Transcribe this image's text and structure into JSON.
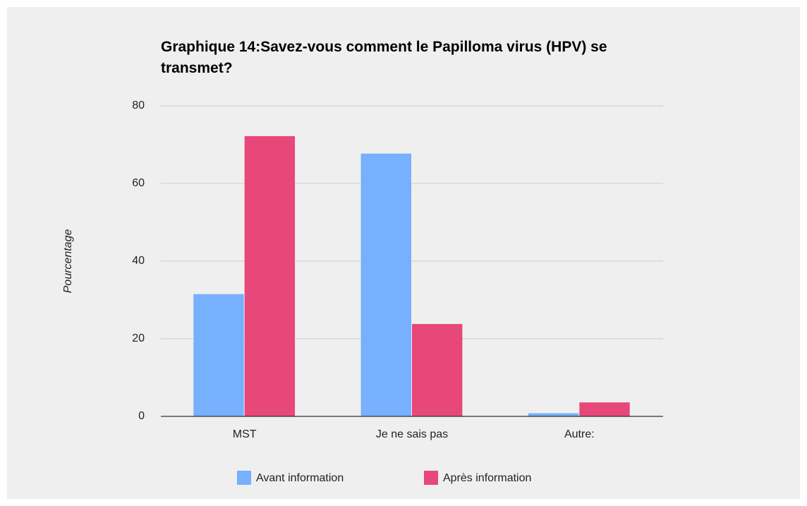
{
  "chart_data": {
    "type": "bar",
    "title": "Graphique 14:Savez-vous comment le Papilloma virus (HPV) se transmet?",
    "y_label": "Pourcentage",
    "categories": [
      "MST",
      "Je ne sais pas",
      "Autre:"
    ],
    "series": [
      {
        "name": "Avant information",
        "color": "#76b0ff",
        "values": [
          31.5,
          67.7,
          0.8
        ]
      },
      {
        "name": "Après information",
        "color": "#e8477a",
        "values": [
          72.2,
          23.8,
          3.6
        ]
      }
    ],
    "ylim": [
      0,
      80
    ],
    "yticks": [
      0,
      20,
      40,
      60,
      80
    ],
    "grid": true,
    "legend": "bottom"
  }
}
